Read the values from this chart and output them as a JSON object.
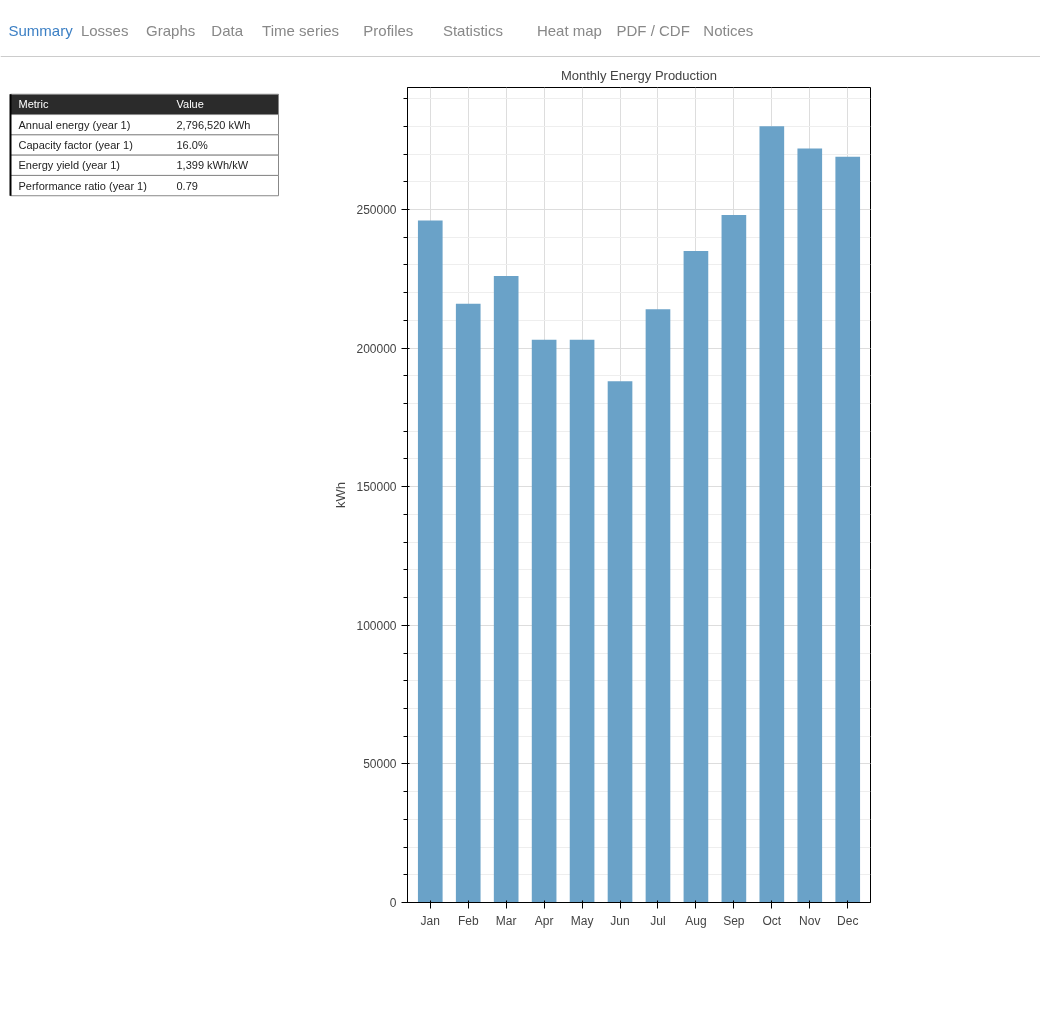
{
  "chart_data": [
    {
      "type": "other",
      "annotations": [
        "Summary",
        "Losses",
        "Graphs",
        "Data",
        "Time series",
        "Profiles",
        "Statistics",
        "Heat map",
        "PDF / CDF",
        "Notices"
      ]
    },
    {
      "type": "other",
      "annotations": [
        "Metric",
        "Value",
        "Annual energy (year 1)",
        "2,796,520 kWh",
        "Capacity factor (year 1)",
        "16.0%",
        "Energy yield (year 1)",
        "1,399 kWh/kW",
        "Performance ratio (year 1)",
        "0.79"
      ]
    },
    {
      "type": "bar",
      "title": "Monthly Energy Production",
      "ylabel": "kWh",
      "categories": [
        "Jan",
        "Feb",
        "Mar",
        "Apr",
        "May",
        "Jun",
        "Jul",
        "Aug",
        "Sep",
        "Oct",
        "Nov",
        "Dec"
      ],
      "values": [
        246000,
        216000,
        226000,
        203000,
        203000,
        188000,
        214000,
        235000,
        248000,
        280000,
        272000,
        269000
      ],
      "color": "#6aa2c8",
      "ylim": [
        0,
        294000
      ],
      "yticks": [
        0,
        50000,
        100000,
        150000,
        200000,
        250000
      ],
      "grid": true
    }
  ]
}
